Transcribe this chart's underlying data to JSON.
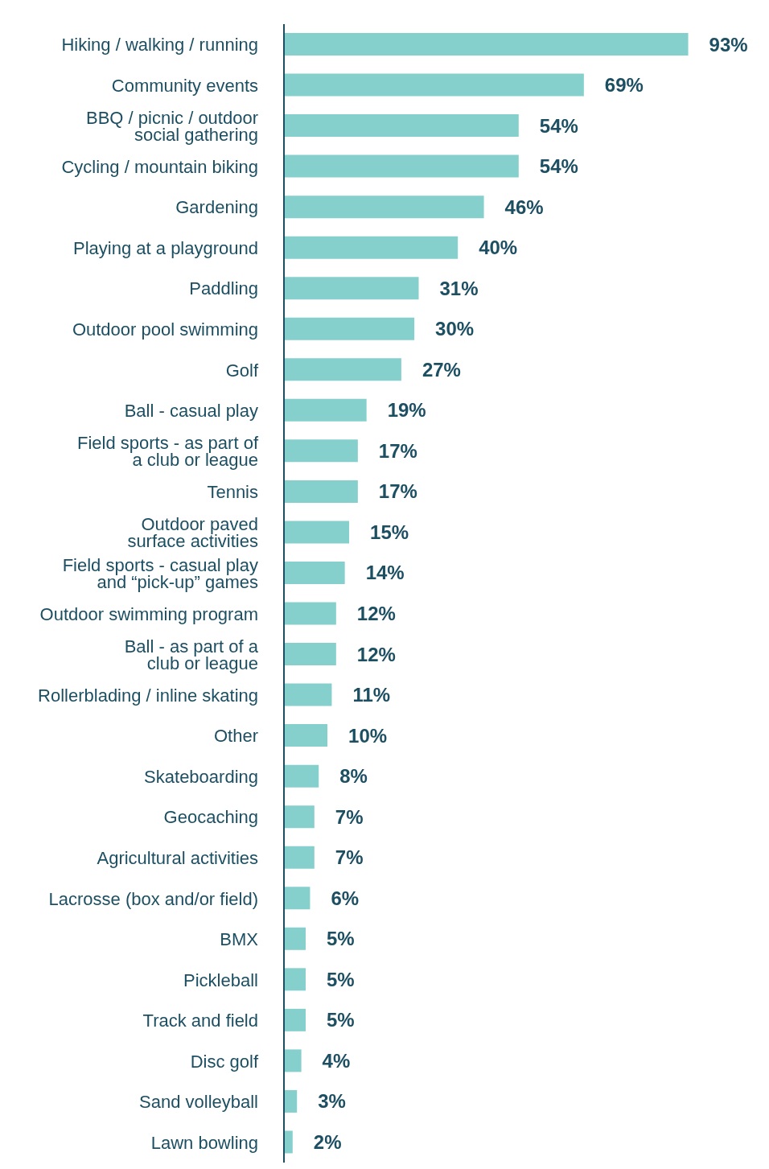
{
  "chart_data": {
    "type": "bar",
    "orientation": "horizontal",
    "categories": [
      "Hiking / walking / running",
      "Community events",
      "BBQ / picnic / outdoor\nsocial gathering",
      "Cycling / mountain biking",
      "Gardening",
      "Playing at a playground",
      "Paddling",
      "Outdoor pool swimming",
      "Golf",
      "Ball - casual play",
      "Field sports - as part of\na club or league",
      "Tennis",
      "Outdoor paved\nsurface activities",
      "Field sports - casual play\nand “pick-up” games",
      "Outdoor swimming program",
      "Ball - as part of a\nclub or league",
      "Rollerblading / inline skating",
      "Other",
      "Skateboarding",
      "Geocaching",
      "Agricultural activities",
      "Lacrosse (box and/or field)",
      "BMX",
      "Pickleball",
      "Track and field",
      "Disc golf",
      "Sand volleyball",
      "Lawn bowling"
    ],
    "values": [
      93,
      69,
      54,
      54,
      46,
      40,
      31,
      30,
      27,
      19,
      17,
      17,
      15,
      14,
      12,
      12,
      11,
      10,
      8,
      7,
      7,
      6,
      5,
      5,
      5,
      4,
      3,
      2
    ],
    "value_labels": [
      "93%",
      "69%",
      "54%",
      "54%",
      "46%",
      "40%",
      "31%",
      "30%",
      "27%",
      "19%",
      "17%",
      "17%",
      "15%",
      "14%",
      "12%",
      "12%",
      "11%",
      "10%",
      "8%",
      "7%",
      "7%",
      "6%",
      "5%",
      "5%",
      "5%",
      "4%",
      "3%",
      "2%"
    ],
    "color": "#85d0cc"
  }
}
